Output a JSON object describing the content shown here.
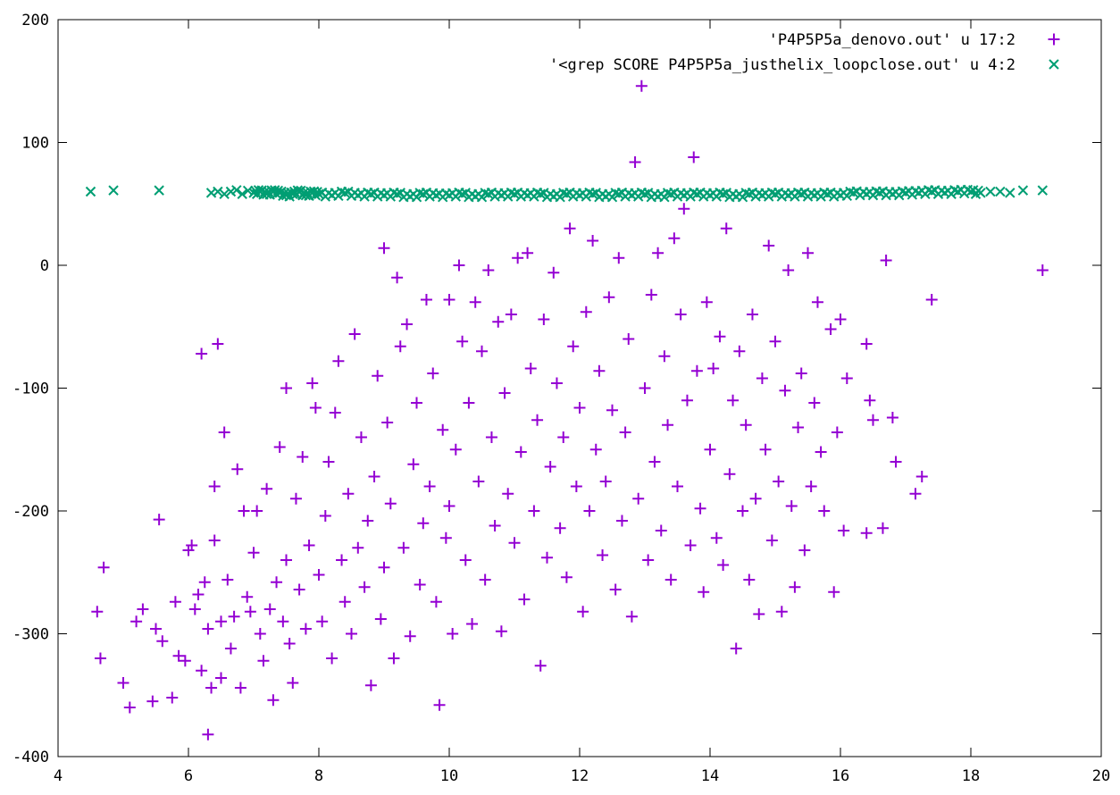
{
  "chart_data": {
    "type": "scatter",
    "title": "",
    "xlabel": "",
    "ylabel": "",
    "xlim": [
      4,
      20
    ],
    "ylim": [
      -400,
      200
    ],
    "x_ticks": [
      "4",
      "6",
      "8",
      "10",
      "12",
      "14",
      "16",
      "18",
      "20"
    ],
    "y_ticks": [
      "-400",
      "-300",
      "-200",
      "-100",
      "0",
      "100",
      "200"
    ],
    "grid": false,
    "legend_position": "top-right",
    "series": [
      {
        "name": "'P4P5P5a_denovo.out' u 17:2",
        "marker": "plus",
        "color": "#9400D3",
        "points": [
          [
            4.6,
            -282
          ],
          [
            4.65,
            -320
          ],
          [
            4.7,
            -246
          ],
          [
            5.0,
            -340
          ],
          [
            5.1,
            -360
          ],
          [
            5.2,
            -290
          ],
          [
            5.3,
            -280
          ],
          [
            5.45,
            -355
          ],
          [
            5.5,
            -296
          ],
          [
            5.55,
            -207
          ],
          [
            5.6,
            -306
          ],
          [
            5.75,
            -352
          ],
          [
            5.8,
            -274
          ],
          [
            5.85,
            -318
          ],
          [
            5.95,
            -322
          ],
          [
            6.0,
            -232
          ],
          [
            6.05,
            -228
          ],
          [
            6.1,
            -280
          ],
          [
            6.15,
            -268
          ],
          [
            6.2,
            -330
          ],
          [
            6.2,
            -72
          ],
          [
            6.25,
            -258
          ],
          [
            6.3,
            -296
          ],
          [
            6.3,
            -382
          ],
          [
            6.35,
            -344
          ],
          [
            6.4,
            -180
          ],
          [
            6.4,
            -224
          ],
          [
            6.45,
            -64
          ],
          [
            6.5,
            -290
          ],
          [
            6.5,
            -336
          ],
          [
            6.55,
            -136
          ],
          [
            6.6,
            -256
          ],
          [
            6.65,
            -312
          ],
          [
            6.7,
            -286
          ],
          [
            6.75,
            -166
          ],
          [
            6.8,
            -344
          ],
          [
            6.85,
            -200
          ],
          [
            6.9,
            -270
          ],
          [
            6.95,
            -282
          ],
          [
            7.0,
            -234
          ],
          [
            7.05,
            -200
          ],
          [
            7.1,
            -300
          ],
          [
            7.15,
            -322
          ],
          [
            7.2,
            -182
          ],
          [
            7.25,
            -280
          ],
          [
            7.3,
            -354
          ],
          [
            7.35,
            -258
          ],
          [
            7.4,
            -148
          ],
          [
            7.45,
            -290
          ],
          [
            7.5,
            -100
          ],
          [
            7.5,
            -240
          ],
          [
            7.55,
            -308
          ],
          [
            7.6,
            -340
          ],
          [
            7.65,
            -190
          ],
          [
            7.7,
            -264
          ],
          [
            7.75,
            -156
          ],
          [
            7.8,
            -296
          ],
          [
            7.85,
            -228
          ],
          [
            7.9,
            -96
          ],
          [
            7.95,
            -116
          ],
          [
            8.0,
            -252
          ],
          [
            8.05,
            -290
          ],
          [
            8.1,
            -204
          ],
          [
            8.15,
            -160
          ],
          [
            8.2,
            -320
          ],
          [
            8.25,
            -120
          ],
          [
            8.3,
            -78
          ],
          [
            8.35,
            -240
          ],
          [
            8.4,
            -274
          ],
          [
            8.45,
            -186
          ],
          [
            8.5,
            -300
          ],
          [
            8.55,
            -56
          ],
          [
            8.6,
            -230
          ],
          [
            8.65,
            -140
          ],
          [
            8.7,
            -262
          ],
          [
            8.75,
            -208
          ],
          [
            8.8,
            -342
          ],
          [
            8.85,
            -172
          ],
          [
            8.9,
            -90
          ],
          [
            8.95,
            -288
          ],
          [
            9.0,
            14
          ],
          [
            9.0,
            -246
          ],
          [
            9.05,
            -128
          ],
          [
            9.1,
            -194
          ],
          [
            9.15,
            -320
          ],
          [
            9.2,
            -10
          ],
          [
            9.25,
            -66
          ],
          [
            9.3,
            -230
          ],
          [
            9.35,
            -48
          ],
          [
            9.4,
            -302
          ],
          [
            9.45,
            -162
          ],
          [
            9.5,
            -112
          ],
          [
            9.55,
            -260
          ],
          [
            9.6,
            -210
          ],
          [
            9.65,
            -28
          ],
          [
            9.7,
            -180
          ],
          [
            9.75,
            -88
          ],
          [
            9.8,
            -274
          ],
          [
            9.85,
            -358
          ],
          [
            9.9,
            -134
          ],
          [
            9.95,
            -222
          ],
          [
            10.0,
            -28
          ],
          [
            10.0,
            -196
          ],
          [
            10.05,
            -300
          ],
          [
            10.1,
            -150
          ],
          [
            10.15,
            0
          ],
          [
            10.2,
            -62
          ],
          [
            10.25,
            -240
          ],
          [
            10.3,
            -112
          ],
          [
            10.35,
            -292
          ],
          [
            10.4,
            -30
          ],
          [
            10.45,
            -176
          ],
          [
            10.5,
            -70
          ],
          [
            10.55,
            -256
          ],
          [
            10.6,
            -4
          ],
          [
            10.65,
            -140
          ],
          [
            10.7,
            -212
          ],
          [
            10.75,
            -46
          ],
          [
            10.8,
            -298
          ],
          [
            10.85,
            -104
          ],
          [
            10.9,
            -186
          ],
          [
            10.95,
            -40
          ],
          [
            11.0,
            -226
          ],
          [
            11.05,
            6
          ],
          [
            11.1,
            -152
          ],
          [
            11.15,
            -272
          ],
          [
            11.2,
            10
          ],
          [
            11.25,
            -84
          ],
          [
            11.3,
            -200
          ],
          [
            11.35,
            -126
          ],
          [
            11.4,
            -326
          ],
          [
            11.45,
            -44
          ],
          [
            11.5,
            -238
          ],
          [
            11.55,
            -164
          ],
          [
            11.6,
            -6
          ],
          [
            11.65,
            -96
          ],
          [
            11.7,
            -214
          ],
          [
            11.75,
            -140
          ],
          [
            11.8,
            -254
          ],
          [
            11.85,
            30
          ],
          [
            11.9,
            -66
          ],
          [
            11.95,
            -180
          ],
          [
            12.0,
            -116
          ],
          [
            12.05,
            -282
          ],
          [
            12.1,
            -38
          ],
          [
            12.15,
            -200
          ],
          [
            12.2,
            20
          ],
          [
            12.25,
            -150
          ],
          [
            12.3,
            -86
          ],
          [
            12.35,
            -236
          ],
          [
            12.4,
            -176
          ],
          [
            12.45,
            -26
          ],
          [
            12.5,
            -118
          ],
          [
            12.55,
            -264
          ],
          [
            12.6,
            6
          ],
          [
            12.65,
            -208
          ],
          [
            12.7,
            -136
          ],
          [
            12.75,
            -60
          ],
          [
            12.8,
            -286
          ],
          [
            12.85,
            84
          ],
          [
            12.9,
            -190
          ],
          [
            12.95,
            146
          ],
          [
            13.0,
            -100
          ],
          [
            13.05,
            -240
          ],
          [
            13.1,
            -24
          ],
          [
            13.15,
            -160
          ],
          [
            13.2,
            10
          ],
          [
            13.25,
            -216
          ],
          [
            13.3,
            -74
          ],
          [
            13.35,
            -130
          ],
          [
            13.4,
            -256
          ],
          [
            13.45,
            22
          ],
          [
            13.5,
            -180
          ],
          [
            13.55,
            -40
          ],
          [
            13.6,
            46
          ],
          [
            13.65,
            -110
          ],
          [
            13.7,
            -228
          ],
          [
            13.75,
            88
          ],
          [
            13.8,
            -86
          ],
          [
            13.85,
            -198
          ],
          [
            13.9,
            -266
          ],
          [
            13.95,
            -30
          ],
          [
            14.0,
            -150
          ],
          [
            14.05,
            -84
          ],
          [
            14.1,
            -222
          ],
          [
            14.15,
            -58
          ],
          [
            14.2,
            -244
          ],
          [
            14.25,
            30
          ],
          [
            14.3,
            -170
          ],
          [
            14.35,
            -110
          ],
          [
            14.4,
            -312
          ],
          [
            14.45,
            -70
          ],
          [
            14.5,
            -200
          ],
          [
            14.55,
            -130
          ],
          [
            14.6,
            -256
          ],
          [
            14.65,
            -40
          ],
          [
            14.7,
            -190
          ],
          [
            14.75,
            -284
          ],
          [
            14.8,
            -92
          ],
          [
            14.85,
            -150
          ],
          [
            14.9,
            16
          ],
          [
            14.95,
            -224
          ],
          [
            15.0,
            -62
          ],
          [
            15.05,
            -176
          ],
          [
            15.1,
            -282
          ],
          [
            15.15,
            -102
          ],
          [
            15.2,
            -4
          ],
          [
            15.25,
            -196
          ],
          [
            15.3,
            -262
          ],
          [
            15.35,
            -132
          ],
          [
            15.4,
            -88
          ],
          [
            15.45,
            -232
          ],
          [
            15.5,
            10
          ],
          [
            15.55,
            -180
          ],
          [
            15.6,
            -112
          ],
          [
            15.65,
            -30
          ],
          [
            15.7,
            -152
          ],
          [
            15.75,
            -200
          ],
          [
            15.85,
            -52
          ],
          [
            15.9,
            -266
          ],
          [
            15.95,
            -136
          ],
          [
            16.0,
            -44
          ],
          [
            16.05,
            -216
          ],
          [
            16.1,
            -92
          ],
          [
            16.4,
            -64
          ],
          [
            16.4,
            -218
          ],
          [
            16.45,
            -110
          ],
          [
            16.5,
            -126
          ],
          [
            16.65,
            -214
          ],
          [
            16.7,
            4
          ],
          [
            16.8,
            -124
          ],
          [
            16.85,
            -160
          ],
          [
            17.15,
            -186
          ],
          [
            17.25,
            -172
          ],
          [
            17.4,
            -28
          ],
          [
            19.1,
            -4
          ]
        ]
      },
      {
        "name": "'<grep SCORE P4P5P5a_justhelix_loopclose.out' u 4:2",
        "marker": "cross",
        "color": "#009E73",
        "points": [
          [
            4.5,
            60
          ],
          [
            4.85,
            61
          ],
          [
            5.55,
            61
          ],
          [
            6.35,
            59
          ],
          [
            6.45,
            60
          ],
          [
            6.55,
            58
          ],
          [
            6.65,
            60
          ],
          [
            7.0,
            59
          ],
          [
            7.1,
            60
          ],
          [
            7.2,
            58
          ],
          [
            7.3,
            60
          ],
          [
            7.4,
            59
          ],
          [
            7.5,
            57
          ],
          [
            7.6,
            58
          ],
          [
            7.7,
            60
          ],
          [
            7.8,
            57
          ],
          [
            7.9,
            59
          ],
          [
            8.0,
            58
          ],
          [
            8.2,
            57
          ],
          [
            8.4,
            59
          ],
          [
            8.6,
            57
          ],
          [
            8.8,
            58
          ],
          [
            9.0,
            57
          ],
          [
            9.2,
            58
          ],
          [
            9.4,
            56
          ],
          [
            9.6,
            58
          ],
          [
            9.8,
            57
          ],
          [
            10.0,
            57
          ],
          [
            10.2,
            58
          ],
          [
            10.4,
            56
          ],
          [
            10.6,
            58
          ],
          [
            10.8,
            57
          ],
          [
            11.0,
            58
          ],
          [
            11.2,
            57
          ],
          [
            11.4,
            58
          ],
          [
            11.6,
            56
          ],
          [
            11.8,
            58
          ],
          [
            12.0,
            57
          ],
          [
            12.2,
            58
          ],
          [
            12.4,
            56
          ],
          [
            12.6,
            58
          ],
          [
            12.8,
            57
          ],
          [
            13.0,
            58
          ],
          [
            13.2,
            56
          ],
          [
            13.4,
            58
          ],
          [
            13.6,
            57
          ],
          [
            13.8,
            58
          ],
          [
            14.0,
            57
          ],
          [
            14.2,
            58
          ],
          [
            14.4,
            56
          ],
          [
            14.6,
            58
          ],
          [
            14.8,
            57
          ],
          [
            15.0,
            58
          ],
          [
            15.2,
            57
          ],
          [
            15.4,
            58
          ],
          [
            15.6,
            57
          ],
          [
            15.8,
            58
          ],
          [
            16.0,
            57
          ],
          [
            16.2,
            59
          ],
          [
            16.4,
            58
          ],
          [
            16.6,
            59
          ],
          [
            16.8,
            58
          ],
          [
            17.0,
            59
          ],
          [
            17.2,
            59
          ],
          [
            17.4,
            60
          ],
          [
            17.6,
            59
          ],
          [
            17.8,
            60
          ],
          [
            18.0,
            60
          ],
          [
            18.15,
            59
          ],
          [
            18.3,
            60
          ],
          [
            18.45,
            60
          ],
          [
            18.6,
            59
          ],
          [
            18.8,
            61
          ],
          [
            19.1,
            61
          ]
        ]
      }
    ]
  }
}
